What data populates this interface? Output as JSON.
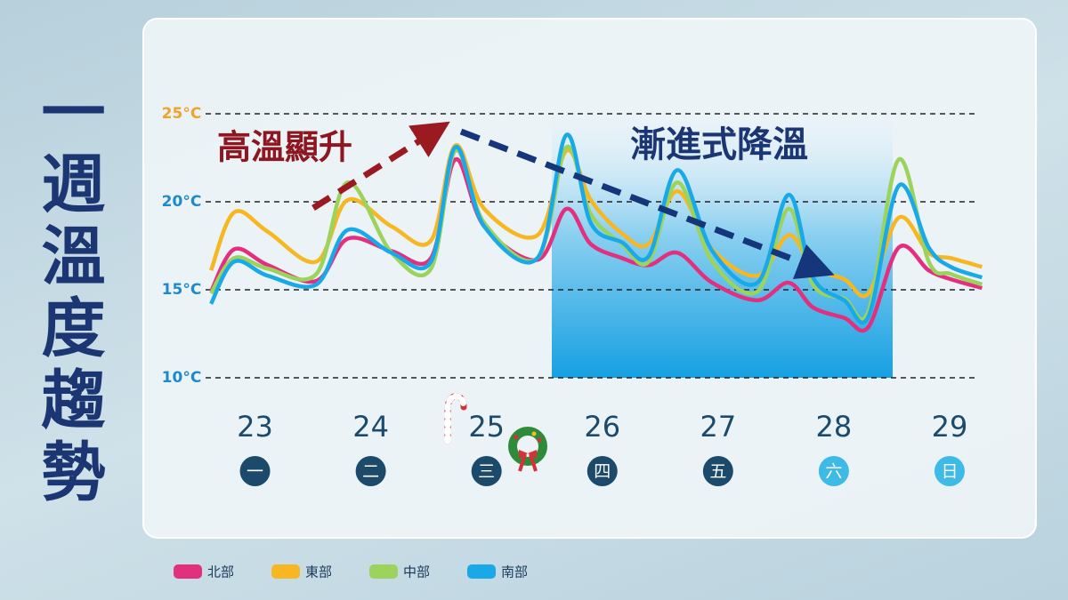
{
  "title": "一週溫度趨勢",
  "chart_data": {
    "type": "line",
    "annotations": [
      "高溫顯升",
      "漸進式降溫"
    ],
    "x": [
      22.62,
      22.82,
      23.11,
      23.53,
      23.8,
      24.18,
      24.52,
      24.73,
      24.98,
      25.44,
      25.69,
      25.9,
      26.17,
      26.4,
      26.65,
      26.95,
      27.34,
      27.61,
      27.82,
      28.09,
      28.3,
      28.56,
      28.82,
      29.01,
      29.28
    ],
    "xlim": [
      22.55,
      29.3
    ],
    "xticks": [
      23,
      24,
      25,
      26,
      27,
      28,
      29
    ],
    "weekdays": [
      "一",
      "二",
      "三",
      "四",
      "五",
      "六",
      "日"
    ],
    "weekday_colors": [
      "#1b4a6b",
      "#1b4a6b",
      "#1b4a6b",
      "#1b4a6b",
      "#1b4a6b",
      "#3dbbe6",
      "#3dbbe6"
    ],
    "ylim": [
      10,
      25
    ],
    "yticks": [
      {
        "value": 10,
        "label": "10°C"
      },
      {
        "value": 15,
        "label": "15°C"
      },
      {
        "value": 20,
        "label": "20°C"
      },
      {
        "value": 25,
        "label": "25°C"
      }
    ],
    "ytick_colors": [
      "#1e8acb",
      "#1e8acb",
      "#1e8acb",
      "#f0a22a"
    ],
    "grid": true,
    "legend": "bottom",
    "series": [
      {
        "name": "北部",
        "color": "#e2307f",
        "values": [
          14.9,
          17.3,
          16.4,
          15.5,
          17.9,
          17.2,
          16.8,
          22.4,
          18.6,
          16.7,
          19.6,
          17.6,
          16.8,
          16.4,
          17.1,
          15.4,
          14.4,
          15.4,
          14.0,
          13.4,
          12.9,
          17.4,
          16.1,
          15.6,
          15.1
        ]
      },
      {
        "name": "東部",
        "color": "#f6b723",
        "values": [
          16.1,
          19.4,
          18.3,
          16.6,
          20.1,
          18.6,
          17.8,
          23.2,
          19.6,
          18.1,
          22.9,
          20.1,
          18.2,
          17.6,
          20.6,
          17.3,
          15.8,
          18.1,
          16.3,
          15.6,
          14.8,
          19.1,
          17.1,
          16.8,
          16.3
        ]
      },
      {
        "name": "中部",
        "color": "#9cd35c",
        "values": [
          14.8,
          16.8,
          16.2,
          15.9,
          21.1,
          17.1,
          16.2,
          22.9,
          18.8,
          16.8,
          23.1,
          19.3,
          17.6,
          16.6,
          21.1,
          16.6,
          14.9,
          19.6,
          15.3,
          14.5,
          13.8,
          22.4,
          16.6,
          15.9,
          15.3
        ]
      },
      {
        "name": "南部",
        "color": "#1aa9e8",
        "values": [
          14.2,
          16.6,
          15.8,
          15.3,
          18.4,
          17.1,
          16.6,
          23.1,
          18.6,
          16.8,
          23.8,
          18.8,
          17.7,
          16.9,
          21.8,
          17.2,
          15.4,
          20.4,
          15.7,
          14.4,
          13.5,
          20.9,
          17.4,
          16.3,
          15.7
        ]
      }
    ]
  }
}
